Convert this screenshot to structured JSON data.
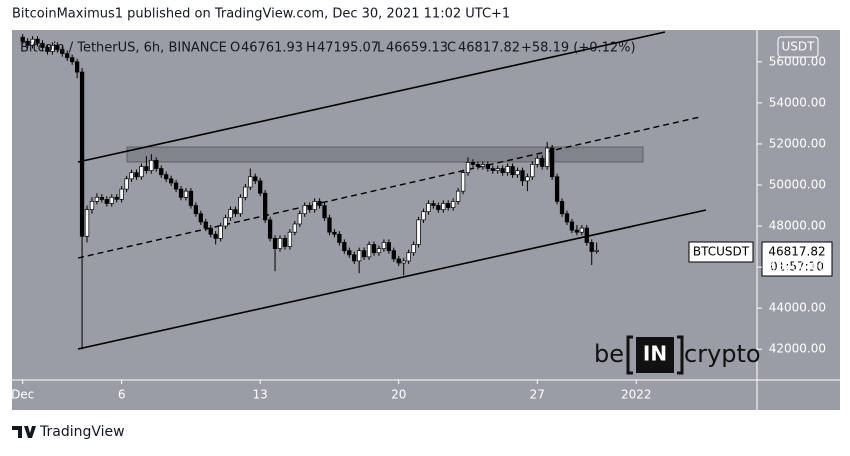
{
  "chart_data": {
    "type": "candlestick",
    "header": "BitcoinMaximus1 published on TradingView.com, Dec 30, 2021 11:02 UTC+1",
    "symbol_title": "Bitcoin / TetherUS, 6h, BINANCE",
    "ohlc_labels": [
      "O",
      "H",
      "L",
      "C"
    ],
    "change": "+58.19 (+0.12%)",
    "currency": "USDT",
    "symbol": "BTCUSDT",
    "countdown": "01:57:10",
    "watermark": [
      "be",
      "IN",
      "crypto"
    ],
    "footer": "TradingView",
    "background": "#9a9da5",
    "up_color": "#ffffff",
    "down_color": "#000000",
    "ylim": [
      40500,
      57550
    ],
    "yticks": [
      {
        "value": 42000,
        "label": "42000.00"
      },
      {
        "value": 44000,
        "label": "44000.00"
      },
      {
        "value": 46000,
        "label": "46000.00"
      },
      {
        "value": 48000,
        "label": "48000.00"
      },
      {
        "value": 50000,
        "label": "50000.00"
      },
      {
        "value": 52000,
        "label": "52000.00"
      },
      {
        "value": 54000,
        "label": "54000.00"
      },
      {
        "value": 56000,
        "label": "56000.00"
      }
    ],
    "xlim": [
      0.46,
      38.1
    ],
    "xticks": [
      {
        "value": 1,
        "label": "Dec"
      },
      6,
      13,
      20,
      27,
      {
        "value": 32,
        "label": "2022"
      }
    ],
    "x": [
      1,
      1.25,
      1.5,
      1.75,
      2,
      2.25,
      2.5,
      2.75,
      3,
      3.25,
      3.5,
      3.75,
      4,
      4.25,
      4.5,
      4.75,
      5,
      5.25,
      5.5,
      5.75,
      6,
      6.25,
      6.5,
      6.75,
      7,
      7.25,
      7.5,
      7.75,
      8,
      8.25,
      8.5,
      8.75,
      9,
      9.25,
      9.5,
      9.75,
      10,
      10.25,
      10.5,
      10.75,
      11,
      11.25,
      11.5,
      11.75,
      12,
      12.25,
      12.5,
      12.75,
      13,
      13.25,
      13.5,
      13.75,
      14,
      14.25,
      14.5,
      14.75,
      15,
      15.25,
      15.5,
      15.75,
      16,
      16.25,
      16.5,
      16.75,
      17,
      17.25,
      17.5,
      17.75,
      18,
      18.25,
      18.5,
      18.75,
      19,
      19.25,
      19.5,
      19.75,
      20,
      20.25,
      20.5,
      20.75,
      21,
      21.25,
      21.5,
      21.75,
      22,
      22.25,
      22.5,
      22.75,
      23,
      23.25,
      23.5,
      23.75,
      24,
      24.25,
      24.5,
      24.75,
      25,
      25.25,
      25.5,
      25.75,
      26,
      26.25,
      26.5,
      26.75,
      27,
      27.25,
      27.5,
      27.75,
      28,
      28.25,
      28.5,
      28.75,
      29,
      29.25,
      29.5,
      29.75,
      30
    ],
    "candles": [
      [
        57200,
        57350,
        56850,
        57000
      ],
      [
        57000,
        57150,
        56650,
        56800
      ],
      [
        56800,
        57250,
        56650,
        57100
      ],
      [
        57100,
        57250,
        56750,
        56900
      ],
      [
        56900,
        57050,
        56550,
        56700
      ],
      [
        56700,
        56850,
        56350,
        56500
      ],
      [
        56500,
        56950,
        56350,
        56800
      ],
      [
        56800,
        56950,
        56450,
        56600
      ],
      [
        56600,
        56750,
        56250,
        56400
      ],
      [
        56400,
        56550,
        56050,
        56200
      ],
      [
        56200,
        56350,
        55850,
        56000
      ],
      [
        56000,
        56150,
        55200,
        55500
      ],
      [
        55500,
        55700,
        42000,
        47500
      ],
      [
        47500,
        49000,
        47200,
        48800
      ],
      [
        48800,
        49400,
        48600,
        49200
      ],
      [
        49200,
        49600,
        49050,
        49400
      ],
      [
        49400,
        49550,
        49150,
        49300
      ],
      [
        49300,
        49450,
        48950,
        49100
      ],
      [
        49100,
        49550,
        48950,
        49400
      ],
      [
        49400,
        49550,
        49150,
        49300
      ],
      [
        49300,
        49950,
        49150,
        49800
      ],
      [
        49800,
        50450,
        49650,
        50300
      ],
      [
        50300,
        50750,
        50150,
        50600
      ],
      [
        50600,
        50750,
        50250,
        50400
      ],
      [
        50400,
        51050,
        50250,
        50900
      ],
      [
        50900,
        51400,
        50550,
        50700
      ],
      [
        50700,
        51500,
        50550,
        51200
      ],
      [
        51200,
        51350,
        50650,
        50800
      ],
      [
        50800,
        50950,
        50350,
        50500
      ],
      [
        50500,
        50650,
        50150,
        50300
      ],
      [
        50300,
        50450,
        49950,
        50100
      ],
      [
        50100,
        50250,
        49650,
        49800
      ],
      [
        49800,
        49950,
        49250,
        49400
      ],
      [
        49400,
        49850,
        49250,
        49700
      ],
      [
        49700,
        49850,
        48850,
        49000
      ],
      [
        49000,
        49150,
        48450,
        48600
      ],
      [
        48600,
        48750,
        48050,
        48200
      ],
      [
        48200,
        48350,
        47750,
        47900
      ],
      [
        47900,
        48050,
        47450,
        47600
      ],
      [
        47600,
        47750,
        47100,
        47400
      ],
      [
        47400,
        48150,
        47250,
        48000
      ],
      [
        48000,
        48550,
        47850,
        48400
      ],
      [
        48400,
        48950,
        48250,
        48800
      ],
      [
        48800,
        48950,
        48450,
        48600
      ],
      [
        48600,
        49550,
        48450,
        49400
      ],
      [
        49400,
        50050,
        49250,
        49900
      ],
      [
        49900,
        50800,
        49750,
        50400
      ],
      [
        50400,
        50550,
        50050,
        50200
      ],
      [
        50200,
        50350,
        49450,
        49600
      ],
      [
        49600,
        49750,
        48150,
        48300
      ],
      [
        48300,
        48450,
        47250,
        47400
      ],
      [
        47400,
        47550,
        45800,
        46900
      ],
      [
        46900,
        47550,
        46750,
        47400
      ],
      [
        47400,
        47550,
        46850,
        47000
      ],
      [
        47000,
        47850,
        46850,
        47700
      ],
      [
        47700,
        48250,
        47550,
        48100
      ],
      [
        48100,
        48750,
        47950,
        48600
      ],
      [
        48600,
        49150,
        48450,
        49000
      ],
      [
        49000,
        49150,
        48650,
        48800
      ],
      [
        48800,
        49350,
        48650,
        49200
      ],
      [
        49200,
        49350,
        48850,
        49000
      ],
      [
        49000,
        49150,
        48250,
        48400
      ],
      [
        48400,
        48550,
        47550,
        47700
      ],
      [
        47700,
        47850,
        47450,
        47600
      ],
      [
        47600,
        47750,
        47050,
        47200
      ],
      [
        47200,
        47350,
        46650,
        46800
      ],
      [
        46800,
        46950,
        46450,
        46600
      ],
      [
        46600,
        46750,
        46150,
        46300
      ],
      [
        46300,
        46950,
        45700,
        46800
      ],
      [
        46800,
        46950,
        46350,
        46500
      ],
      [
        46500,
        47250,
        46350,
        47100
      ],
      [
        47100,
        47250,
        46550,
        46700
      ],
      [
        46700,
        47050,
        46550,
        46900
      ],
      [
        46900,
        47350,
        46750,
        47200
      ],
      [
        47200,
        47350,
        46650,
        46800
      ],
      [
        46800,
        46950,
        46250,
        46400
      ],
      [
        46400,
        46550,
        46050,
        46200
      ],
      [
        46200,
        46450,
        45600,
        46300
      ],
      [
        46300,
        46850,
        46150,
        46700
      ],
      [
        46700,
        47250,
        46550,
        47100
      ],
      [
        47100,
        48450,
        46950,
        48300
      ],
      [
        48300,
        48850,
        48150,
        48700
      ],
      [
        48700,
        49250,
        48550,
        49100
      ],
      [
        49100,
        49250,
        48850,
        49000
      ],
      [
        49000,
        49150,
        48650,
        48800
      ],
      [
        48800,
        49250,
        48650,
        49100
      ],
      [
        49100,
        49250,
        48750,
        48900
      ],
      [
        48900,
        49350,
        48750,
        49200
      ],
      [
        49200,
        49850,
        49050,
        49700
      ],
      [
        49700,
        50750,
        49550,
        50600
      ],
      [
        50600,
        51350,
        50450,
        51100
      ],
      [
        51100,
        51250,
        50850,
        51000
      ],
      [
        51000,
        51150,
        50750,
        50900
      ],
      [
        50900,
        51150,
        50750,
        51000
      ],
      [
        51000,
        51150,
        50650,
        50800
      ],
      [
        50800,
        50950,
        50550,
        50700
      ],
      [
        50700,
        50950,
        50550,
        50800
      ],
      [
        50800,
        50950,
        50450,
        50600
      ],
      [
        50600,
        51050,
        50450,
        50900
      ],
      [
        50900,
        51050,
        50350,
        50500
      ],
      [
        50500,
        50850,
        50350,
        50700
      ],
      [
        50700,
        50850,
        49950,
        50200
      ],
      [
        50200,
        50550,
        49700,
        50400
      ],
      [
        50400,
        51150,
        50250,
        51000
      ],
      [
        51000,
        51450,
        50850,
        51300
      ],
      [
        51300,
        51450,
        50750,
        50900
      ],
      [
        50900,
        52100,
        50750,
        51800
      ],
      [
        51800,
        51950,
        50250,
        50400
      ],
      [
        50400,
        50550,
        49050,
        49200
      ],
      [
        49200,
        49350,
        48450,
        48600
      ],
      [
        48600,
        48750,
        48050,
        48200
      ],
      [
        48200,
        48350,
        47650,
        47800
      ],
      [
        47800,
        48050,
        47550,
        47700
      ],
      [
        47700,
        48050,
        47550,
        47900
      ],
      [
        47900,
        48050,
        47050,
        47200
      ],
      [
        47200,
        47350,
        46100,
        46760
      ],
      [
        46761.93,
        47195.07,
        46659.13,
        46817.82
      ]
    ]
  }
}
